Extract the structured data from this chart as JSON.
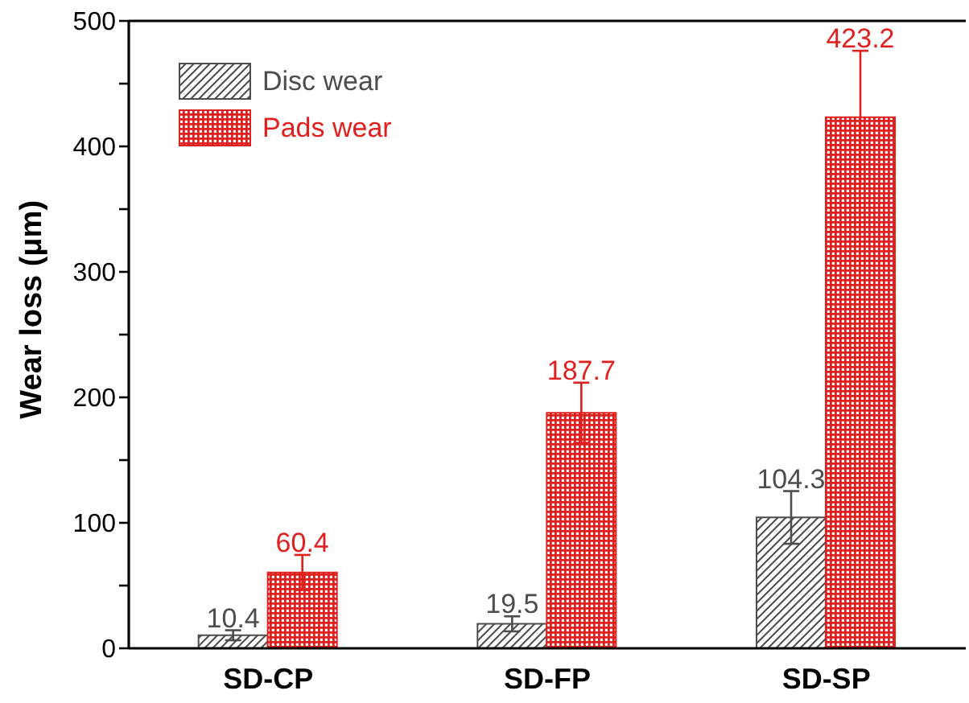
{
  "chart_data": {
    "type": "bar",
    "ylabel": "Wear loss (μm)",
    "categories": [
      "SD-CP",
      "SD-FP",
      "SD-SP"
    ],
    "series": [
      {
        "name": "Disc wear",
        "color": "#4d4d4d",
        "values": [
          10.4,
          19.5,
          104.3
        ],
        "errors": [
          4,
          6,
          21
        ]
      },
      {
        "name": "Pads wear",
        "color": "#e0201f",
        "values": [
          60.4,
          187.7,
          423.2
        ],
        "errors": [
          14,
          24,
          53
        ]
      }
    ],
    "ylim": [
      0,
      500
    ],
    "yticks": [
      0,
      {
        "value": 50,
        "label": null
      },
      100,
      {
        "value": 150,
        "label": null
      },
      200,
      {
        "value": 250,
        "label": null
      },
      300,
      {
        "value": 350,
        "label": null
      },
      400,
      {
        "value": 450,
        "label": null
      },
      500
    ],
    "data_labels": true,
    "legend": "top left"
  }
}
